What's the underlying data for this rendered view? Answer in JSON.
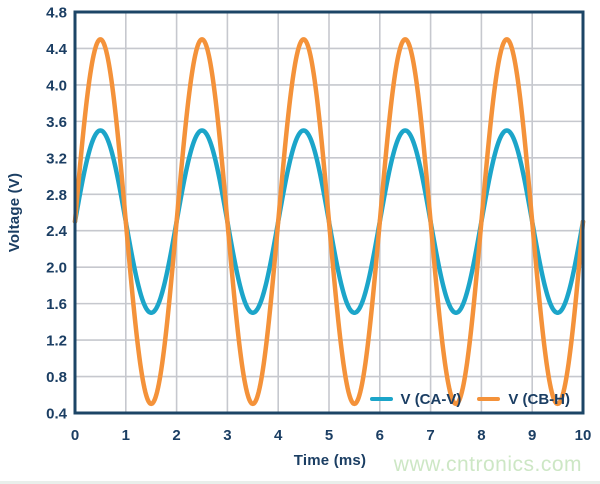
{
  "chart_data": {
    "type": "line",
    "title": "",
    "xlabel": "Time (ms)",
    "ylabel": "Voltage (V)",
    "xlim": [
      0,
      10
    ],
    "ylim": [
      0.4,
      4.8
    ],
    "xticks": [
      0,
      1,
      2,
      3,
      4,
      5,
      6,
      7,
      8,
      9,
      10
    ],
    "yticks": [
      0.4,
      0.8,
      1.2,
      1.6,
      2.0,
      2.4,
      2.8,
      3.2,
      3.6,
      4.0,
      4.4,
      4.8
    ],
    "grid": true,
    "legend_position": "inside-bottom-right",
    "colors": {
      "axis_text": "#1B3E63",
      "plot_border": "#1C4566",
      "gridline": "#C6C8CE"
    },
    "series": [
      {
        "name": "V (CA-V)",
        "color": "#1CA5C9",
        "waveform": "sine",
        "mean_v": 2.5,
        "amplitude_v": 1.0,
        "period_ms": 2,
        "phase_deg": 0,
        "samples": {
          "x_ms": [
            0,
            0.25,
            0.5,
            0.75,
            1,
            1.25,
            1.5,
            1.75,
            2,
            2.25,
            2.5,
            2.75,
            3,
            3.25,
            3.5,
            3.75,
            4,
            4.25,
            4.5,
            4.75,
            5,
            5.25,
            5.5,
            5.75,
            6,
            6.25,
            6.5,
            6.75,
            7,
            7.25,
            7.5,
            7.75,
            8,
            8.25,
            8.5,
            8.75,
            9,
            9.25,
            9.5,
            9.75,
            10
          ],
          "values_v": [
            2.5,
            3.21,
            3.5,
            3.21,
            2.5,
            1.79,
            1.5,
            1.79,
            2.5,
            3.21,
            3.5,
            3.21,
            2.5,
            1.79,
            1.5,
            1.79,
            2.5,
            3.21,
            3.5,
            3.21,
            2.5,
            1.79,
            1.5,
            1.79,
            2.5,
            3.21,
            3.5,
            3.21,
            2.5,
            1.79,
            1.5,
            1.79,
            2.5,
            3.21,
            3.5,
            3.21,
            2.5,
            1.79,
            1.5,
            1.79,
            2.5
          ]
        }
      },
      {
        "name": "V (CB-H)",
        "color": "#F4923A",
        "waveform": "sine",
        "mean_v": 2.5,
        "amplitude_v": 2.0,
        "period_ms": 2,
        "phase_deg": 0,
        "samples": {
          "x_ms": [
            0,
            0.25,
            0.5,
            0.75,
            1,
            1.25,
            1.5,
            1.75,
            2,
            2.25,
            2.5,
            2.75,
            3,
            3.25,
            3.5,
            3.75,
            4,
            4.25,
            4.5,
            4.75,
            5,
            5.25,
            5.5,
            5.75,
            6,
            6.25,
            6.5,
            6.75,
            7,
            7.25,
            7.5,
            7.75,
            8,
            8.25,
            8.5,
            8.75,
            9,
            9.25,
            9.5,
            9.75,
            10
          ],
          "values_v": [
            2.5,
            3.91,
            4.5,
            3.91,
            2.5,
            1.09,
            0.5,
            1.09,
            2.5,
            3.91,
            4.5,
            3.91,
            2.5,
            1.09,
            0.5,
            1.09,
            2.5,
            3.91,
            4.5,
            3.91,
            2.5,
            1.09,
            0.5,
            1.09,
            2.5,
            3.91,
            4.5,
            3.91,
            2.5,
            1.09,
            0.5,
            1.09,
            2.5,
            3.91,
            4.5,
            3.91,
            2.5,
            1.09,
            0.5,
            1.09,
            2.5
          ]
        }
      }
    ]
  },
  "watermark": {
    "text": "www.cntronics.com",
    "color": "#CDE7C5"
  }
}
